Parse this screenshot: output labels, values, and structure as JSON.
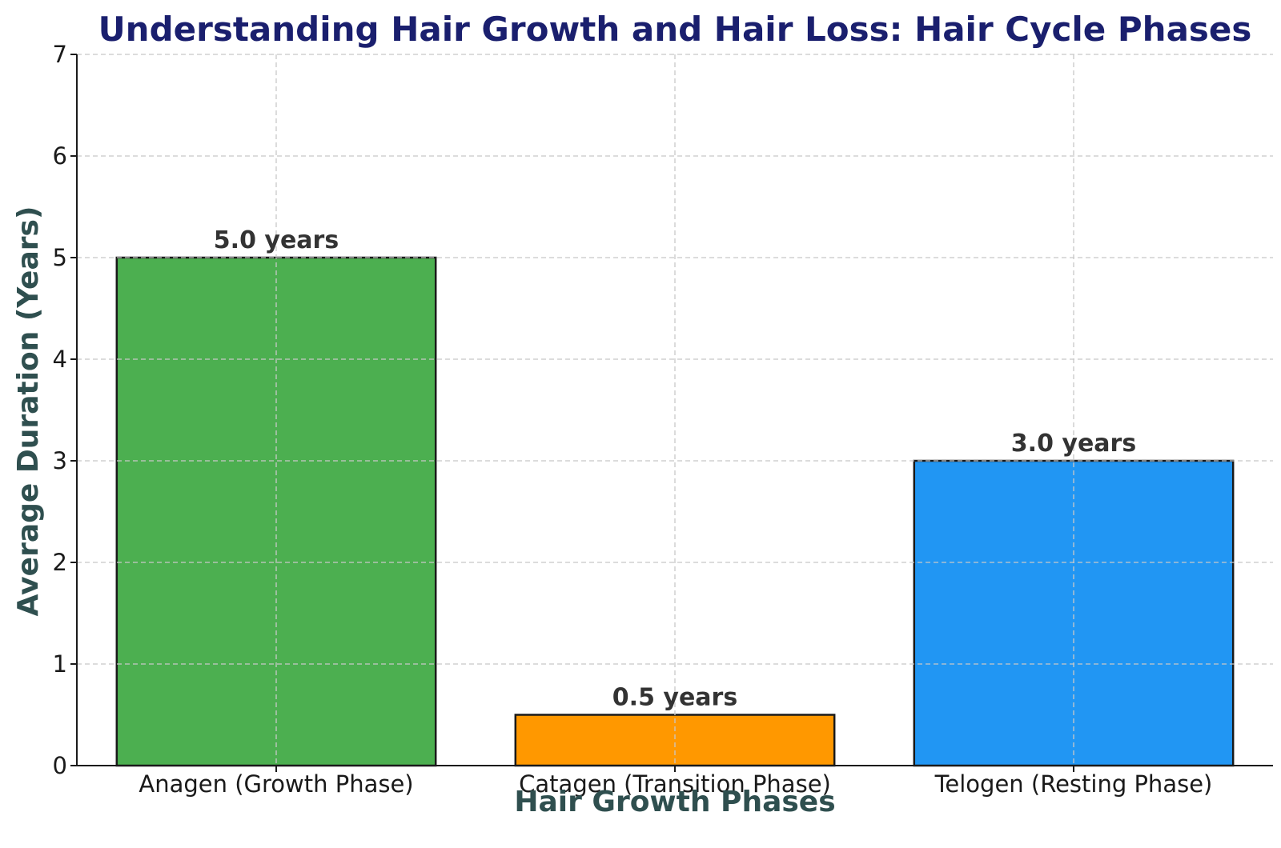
{
  "chart_data": {
    "type": "bar",
    "title": "Understanding Hair Growth and Hair Loss: Hair Cycle Phases",
    "xlabel": "Hair Growth Phases",
    "ylabel": "Average Duration (Years)",
    "categories": [
      "Anagen (Growth Phase)",
      "Catagen (Transition Phase)",
      "Telogen (Resting Phase)"
    ],
    "values": [
      5.0,
      0.5,
      3.0
    ],
    "data_labels": [
      "5.0 years",
      "0.5 years",
      "3.0 years"
    ],
    "colors": [
      "#4caf50",
      "#ff9800",
      "#2196f3"
    ],
    "ylim": [
      0,
      7
    ],
    "yticks": [
      "0",
      "1",
      "2",
      "3",
      "4",
      "5",
      "6",
      "7"
    ],
    "grid": true,
    "title_color": "#1a1f6e",
    "label_color": "#2f4f4f"
  }
}
